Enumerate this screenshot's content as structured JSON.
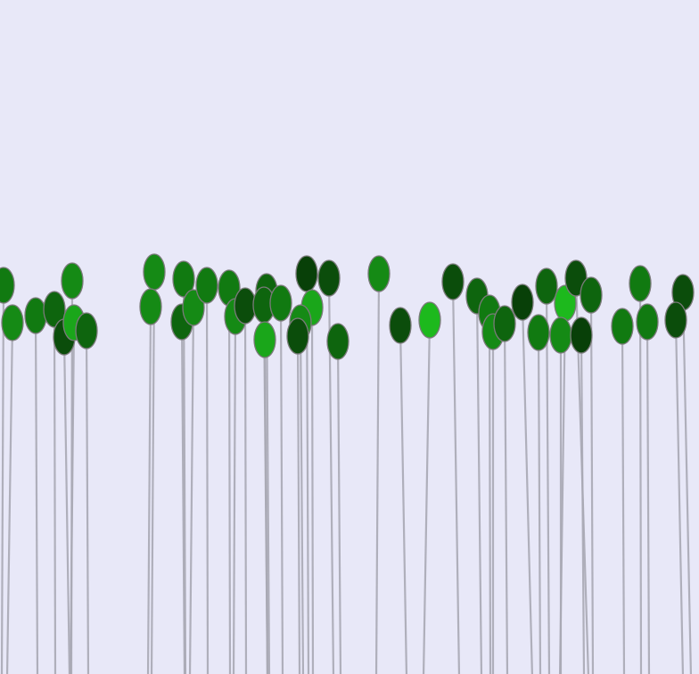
{
  "scene": {
    "kind": "pin-field",
    "background_color": "#e8e8f8",
    "stem_color": "#a9a9b4",
    "head_stroke_color": "#7a7a7a",
    "palette": [
      "#0b4d0b",
      "#0e650e",
      "#117a11",
      "#158a15",
      "#1aa61a",
      "#1db91d",
      "#084008"
    ],
    "pin_count": 52
  }
}
